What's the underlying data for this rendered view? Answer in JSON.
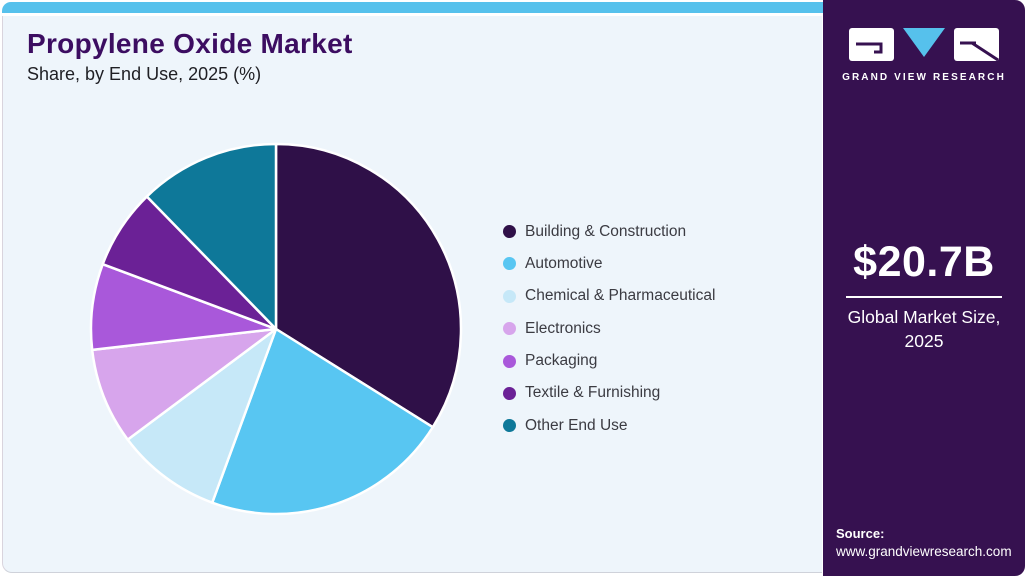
{
  "header": {
    "title": "Propylene Oxide Market",
    "subtitle": "Share, by End Use, 2025 (%)"
  },
  "brand": {
    "logo_text": "GRAND VIEW RESEARCH",
    "panel_color": "#361150",
    "accent_blue": "#56c1ec",
    "title_color": "#3c0d61"
  },
  "market_size": {
    "value": "$20.7B",
    "label": "Global Market Size, 2025"
  },
  "source": {
    "label": "Source:",
    "url": "www.grandviewresearch.com"
  },
  "chart_data": {
    "type": "pie",
    "title": "Propylene Oxide Market Share, by End Use, 2025 (%)",
    "values_unit": "%",
    "start_angle_deg": 0,
    "direction": "clockwise",
    "legend_position": "right",
    "series": [
      {
        "name": "Building & Construction",
        "value": 33.9,
        "color": "#2f1048"
      },
      {
        "name": "Automotive",
        "value": 21.7,
        "color": "#58c6f2"
      },
      {
        "name": "Chemical & Pharmaceutical",
        "value": 9.2,
        "color": "#c6e8f8"
      },
      {
        "name": "Electronics",
        "value": 8.4,
        "color": "#d7a5ec"
      },
      {
        "name": "Packaging",
        "value": 7.5,
        "color": "#a958da"
      },
      {
        "name": "Textile & Furnishing",
        "value": 7.0,
        "color": "#6b2196"
      },
      {
        "name": "Other End Use",
        "value": 12.3,
        "color": "#0e7899"
      }
    ]
  }
}
